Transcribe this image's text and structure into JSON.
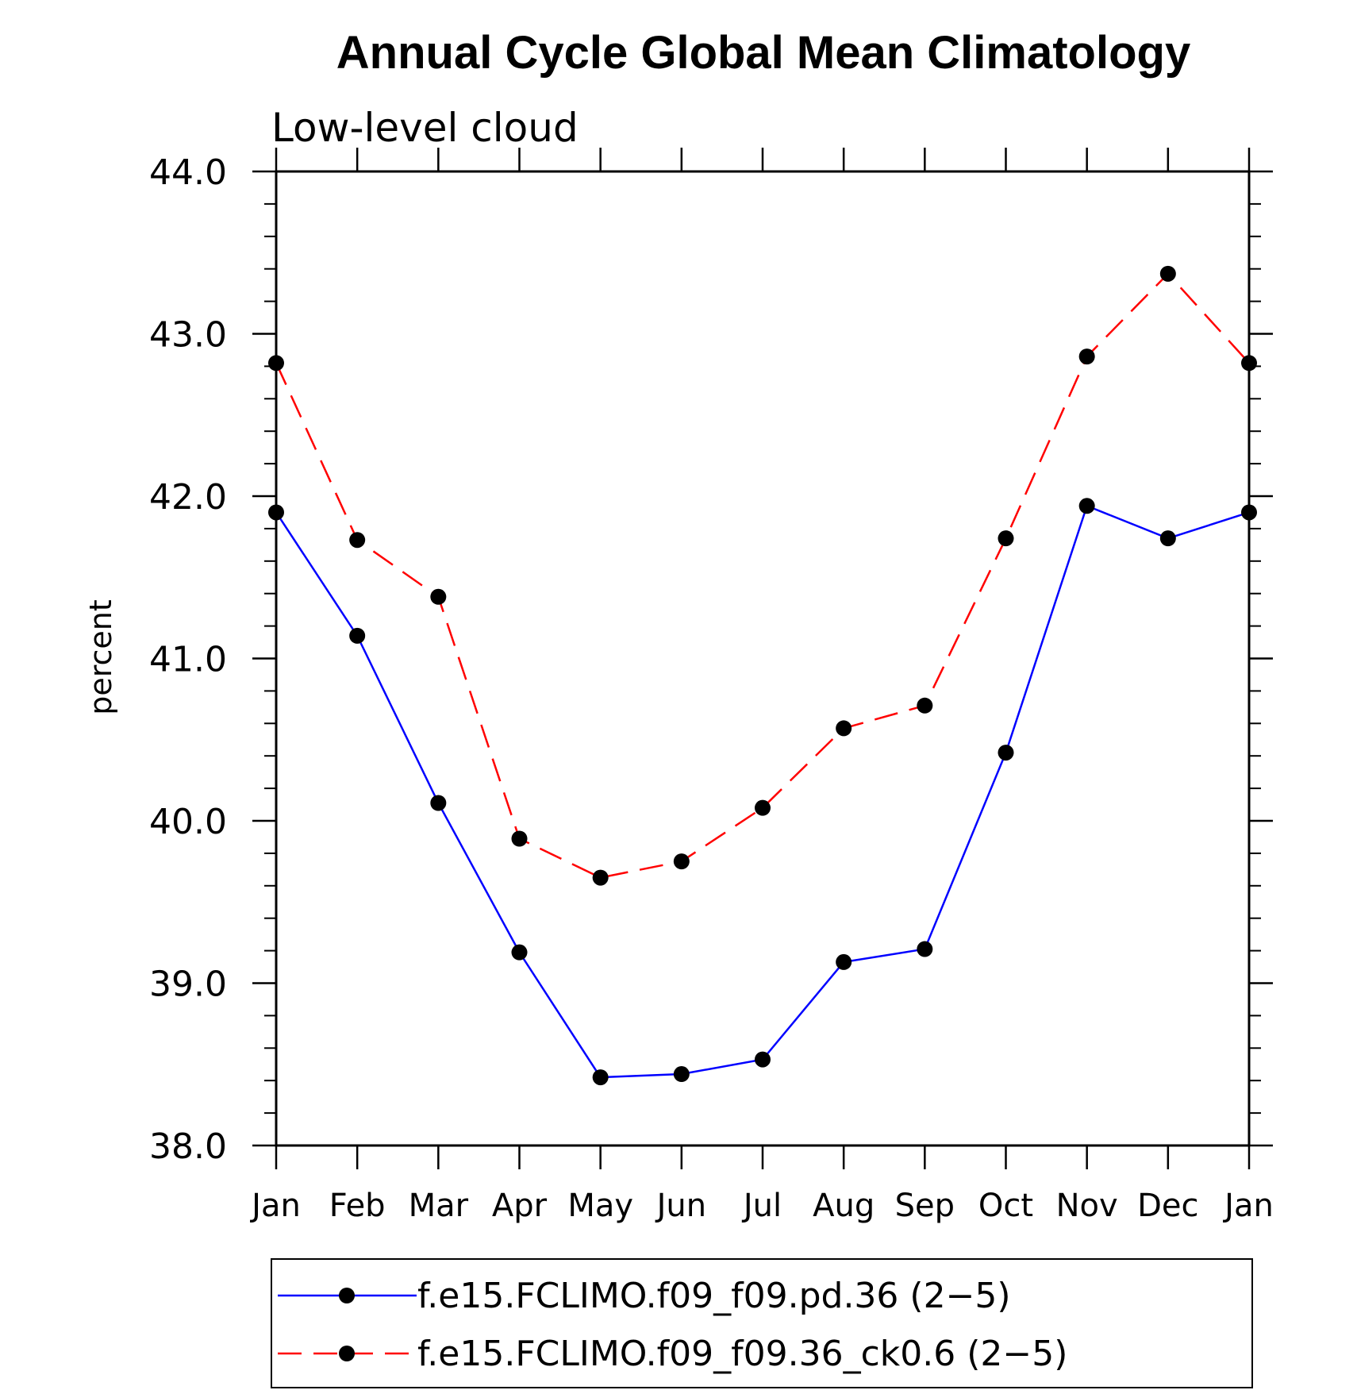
{
  "chart_data": {
    "type": "line",
    "title": "Annual Cycle Global Mean Climatology",
    "subtitle": "Low-level cloud",
    "xlabel": "",
    "ylabel": "percent",
    "ylim": [
      38.0,
      44.0
    ],
    "y_ticks": [
      "38.0",
      "39.0",
      "40.0",
      "41.0",
      "42.0",
      "43.0",
      "44.0"
    ],
    "y_tick_values": [
      38.0,
      39.0,
      40.0,
      41.0,
      42.0,
      43.0,
      44.0
    ],
    "categories": [
      "Jan",
      "Feb",
      "Mar",
      "Apr",
      "May",
      "Jun",
      "Jul",
      "Aug",
      "Sep",
      "Oct",
      "Nov",
      "Dec",
      "Jan"
    ],
    "legend_position": "bottom",
    "grid": false,
    "series": [
      {
        "name": "f.e15.FCLIMO.f09_f09.pd.36 (2−5)",
        "color": "#0000ff",
        "dash": "solid",
        "values": [
          41.9,
          41.14,
          40.11,
          39.19,
          38.42,
          38.44,
          38.53,
          39.13,
          39.21,
          40.42,
          41.94,
          41.74,
          41.9
        ]
      },
      {
        "name": "f.e15.FCLIMO.f09_f09.36_ck0.6 (2−5)",
        "color": "#ff0000",
        "dash": "dashed",
        "values": [
          42.82,
          41.73,
          41.38,
          39.89,
          39.65,
          39.75,
          40.08,
          40.57,
          40.71,
          41.74,
          42.86,
          43.37,
          42.82
        ]
      }
    ]
  }
}
